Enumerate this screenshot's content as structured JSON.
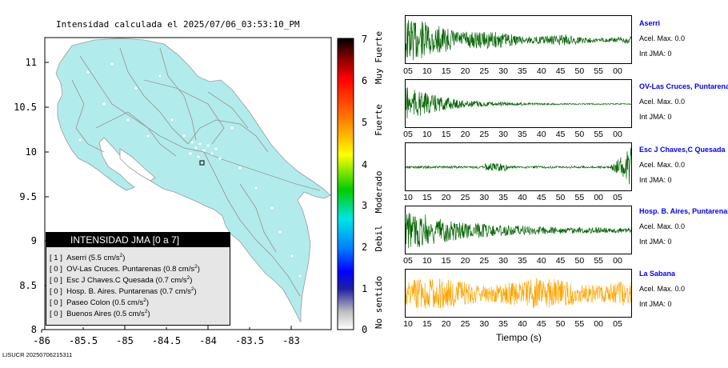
{
  "map": {
    "title": "Intensidad calculada el 2025/07/06_03:53:10_PM",
    "lat_ticks": [
      "11",
      "10.5",
      "10",
      "9.5",
      "9",
      "8.5",
      "8"
    ],
    "lon_ticks": [
      "-86",
      "-85.5",
      "-85",
      "-84.5",
      "-84",
      "-83.5",
      "-83"
    ],
    "land_color": "#b2ebeb",
    "border_color": "#a0a0a0"
  },
  "legend": {
    "header": "INTENSIDAD JMA [0 a 7]",
    "rows": [
      {
        "code": "[ 1 ]",
        "text": "Aserri (5.5 cm/s",
        "sup": "2",
        "close": ")"
      },
      {
        "code": "[ 0 ]",
        "text": "OV-Las Cruces. Puntarenas (0.8 cm/s",
        "sup": "2",
        "close": ")"
      },
      {
        "code": "[ 0 ]",
        "text": "Esc J Chaves.C Quesada (0.7 cm/s",
        "sup": "2",
        "close": ")"
      },
      {
        "code": "[ 0 ]",
        "text": "Hosp. B. Aires. Puntarenas (0.7 cm/s",
        "sup": "2",
        "close": ")"
      },
      {
        "code": "[ 0 ]",
        "text": "Paseo Colon (0.5 cm/s",
        "sup": "2",
        "close": ")"
      },
      {
        "code": "[ 0 ]",
        "text": "Buenos Aires (0.5 cm/s",
        "sup": "2",
        "close": ")"
      }
    ]
  },
  "scale": {
    "numbers": [
      "7",
      "6",
      "5",
      "4",
      "3",
      "2",
      "1",
      "0"
    ],
    "labels": [
      "Muy Fuerte",
      "Fuerte",
      "Moderado",
      "Debil",
      "No sentido"
    ]
  },
  "footer": {
    "code": "LISUCR 20250706215311"
  },
  "stations": [
    {
      "name": "Aserri",
      "acel": "Acel. Max. 0.0",
      "int": "Int JMA: 0",
      "ticks": [
        "05",
        "10",
        "15",
        "20",
        "25",
        "30",
        "35",
        "40",
        "45",
        "50",
        "55",
        "00"
      ],
      "color": "#006400"
    },
    {
      "name": "OV-Las Cruces, Puntarenas",
      "acel": "Acel. Max. 0.0",
      "int": "Int JMA: 0",
      "ticks": [
        "05",
        "10",
        "15",
        "20",
        "25",
        "30",
        "35",
        "40",
        "45",
        "50",
        "55",
        "00"
      ],
      "color": "#006400"
    },
    {
      "name": "Esc J Chaves,C Quesada",
      "acel": "Acel. Max. 0.0",
      "int": "Int JMA: 0",
      "ticks": [
        "10",
        "15",
        "20",
        "25",
        "30",
        "35",
        "40",
        "45",
        "50",
        "55",
        "00",
        "05"
      ],
      "color": "#006400"
    },
    {
      "name": "Hosp. B. Aires, Puntarenas",
      "acel": "Acel. Max. 0.0",
      "int": "Int JMA: 0",
      "ticks": [
        "05",
        "10",
        "15",
        "20",
        "25",
        "30",
        "35",
        "40",
        "45",
        "50",
        "55",
        "00"
      ],
      "color": "#006400"
    },
    {
      "name": "La Sabana",
      "acel": "Acel. Max. 0.0",
      "int": "Int JMA: 0",
      "ticks": [
        "10",
        "15",
        "20",
        "25",
        "30",
        "35",
        "40",
        "45",
        "50",
        "55",
        "00",
        "05"
      ],
      "color": "#ffa500"
    }
  ],
  "time_axis_label": "Tiempo (s)"
}
